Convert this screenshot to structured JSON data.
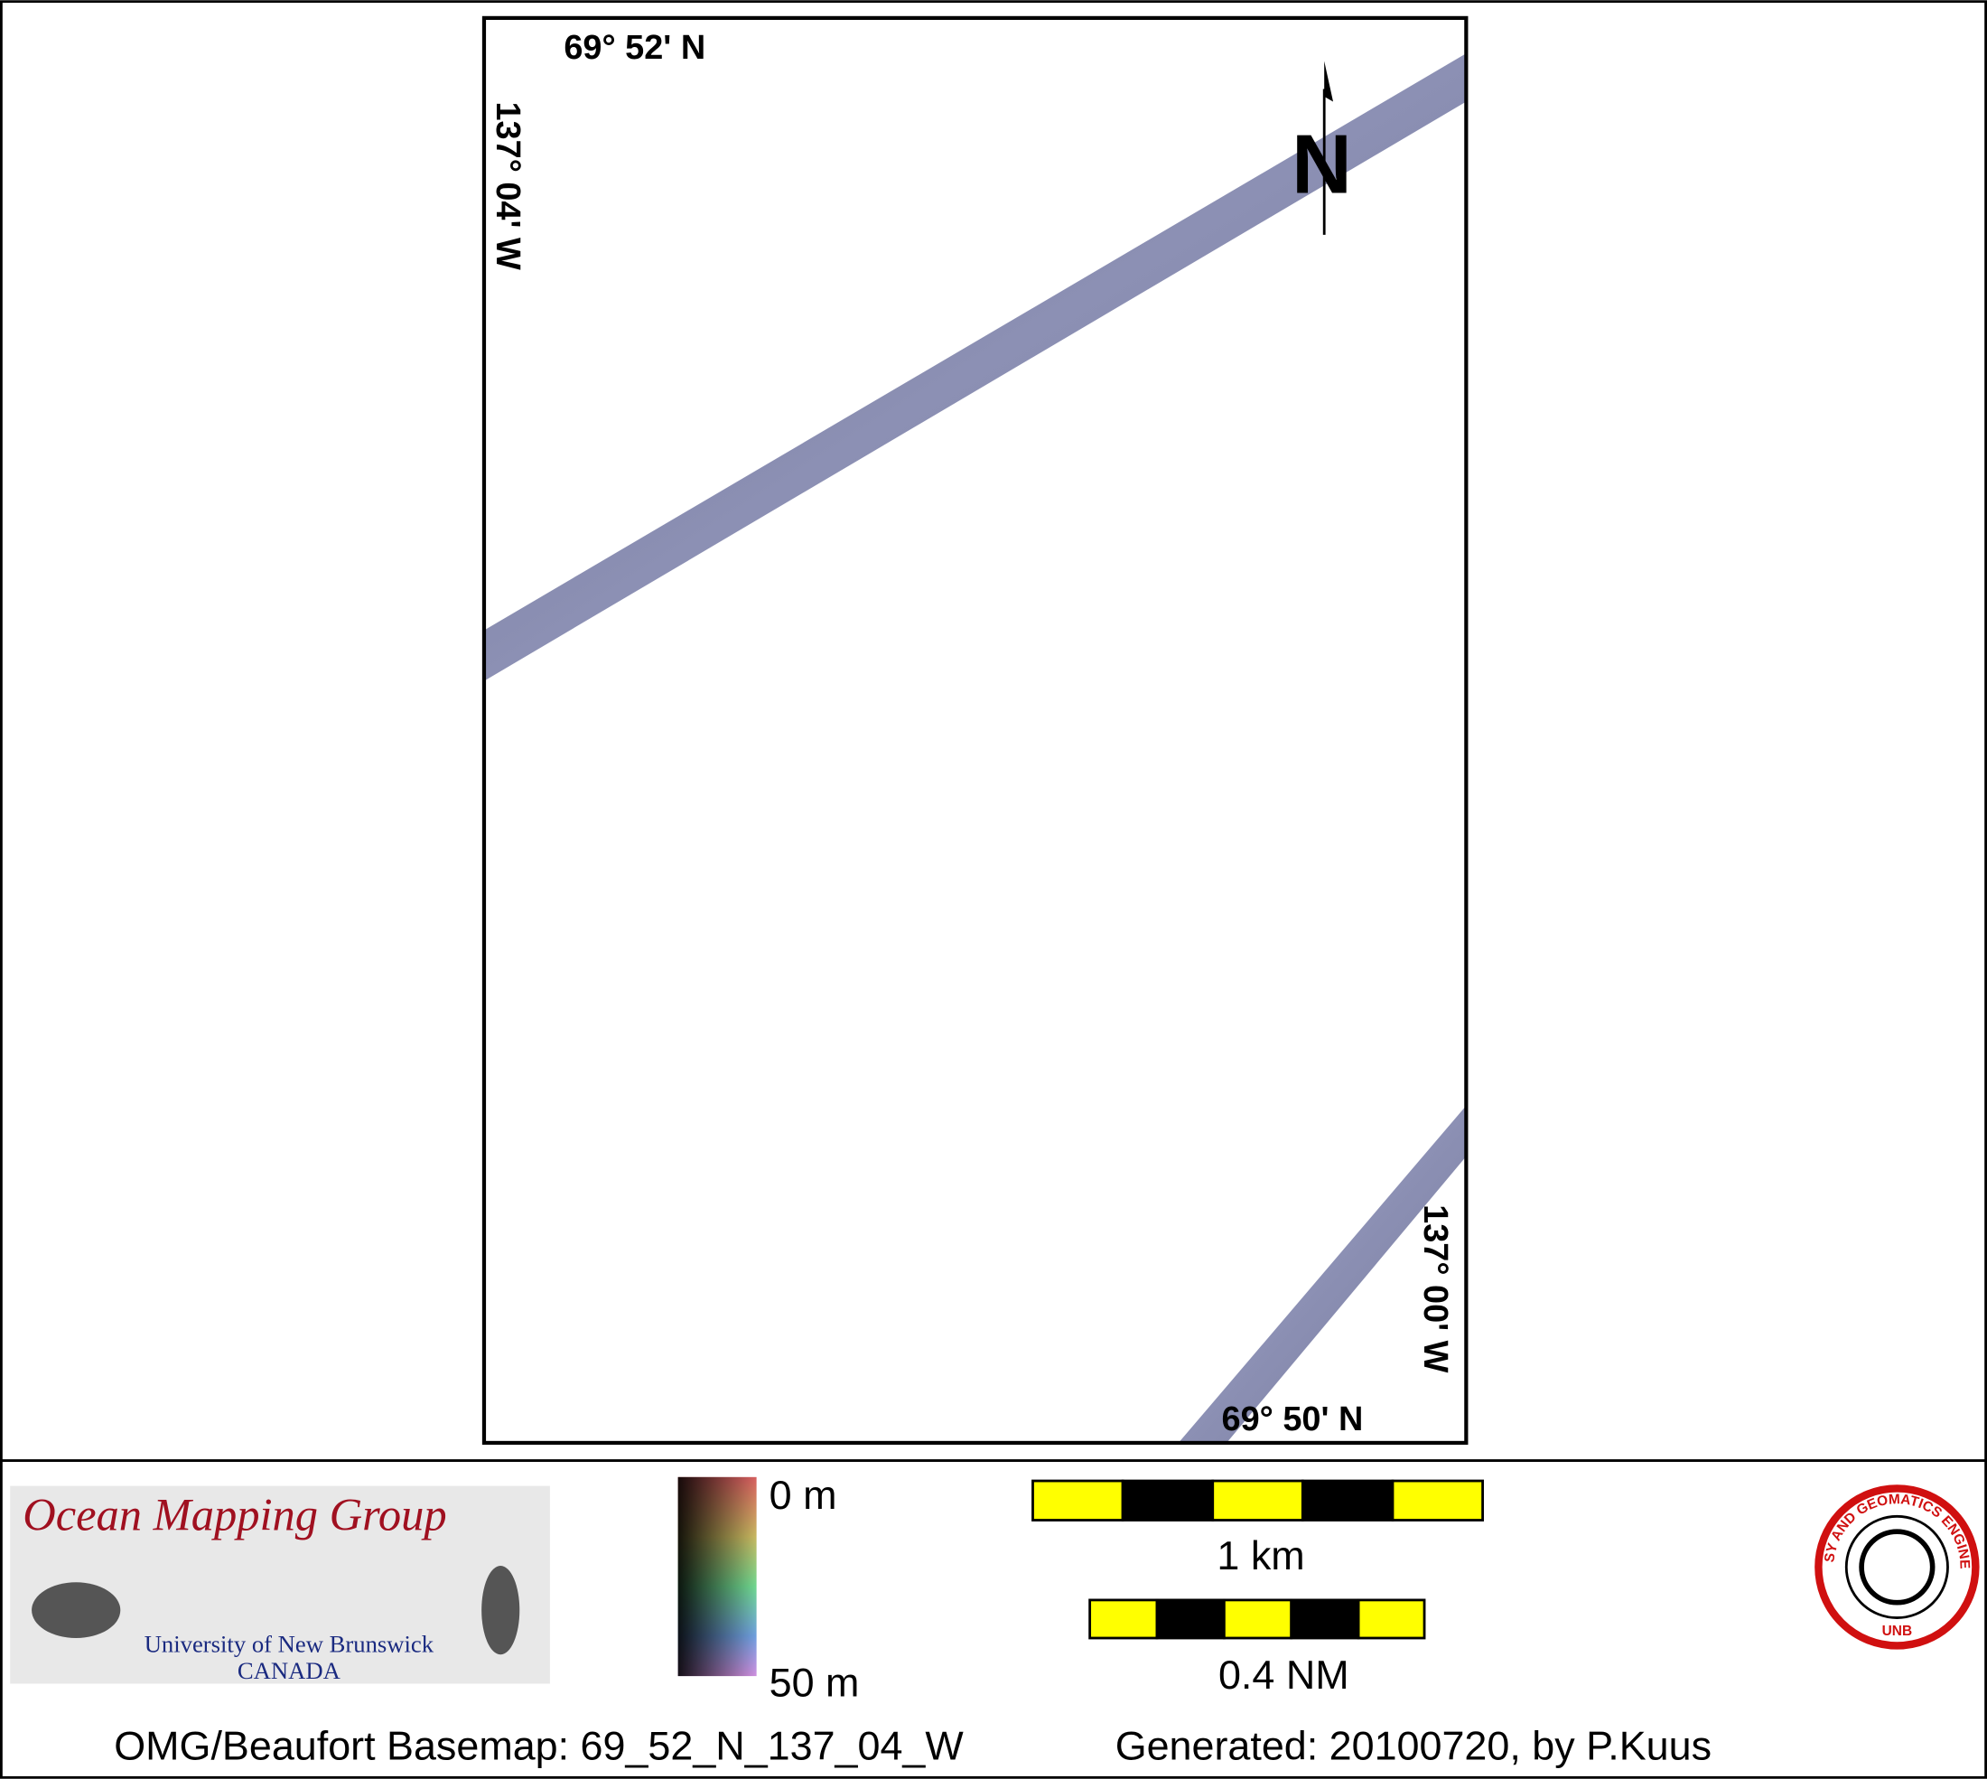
{
  "map": {
    "top_left_lat": "69° 52' N",
    "left_lon": "137° 04' W",
    "right_lon": "137° 00' W",
    "bottom_right_lat": "69° 50' N",
    "north": "N"
  },
  "legend": {
    "logo_title": "Ocean Mapping Group",
    "logo_university": "University of New Brunswick",
    "logo_country": "CANADA",
    "depth_top": "0 m",
    "depth_bottom": "50 m",
    "scale_km": "1 km",
    "scale_nm": "0.4 NM",
    "seal_text": "GEODESY AND GEOMATICS ENGINEERING",
    "seal_unb": "UNB"
  },
  "footer": {
    "basemap": "OMG/Beaufort Basemap: 69_52_N_137_04_W",
    "generated": "Generated: 20100720, by P.Kuus"
  }
}
